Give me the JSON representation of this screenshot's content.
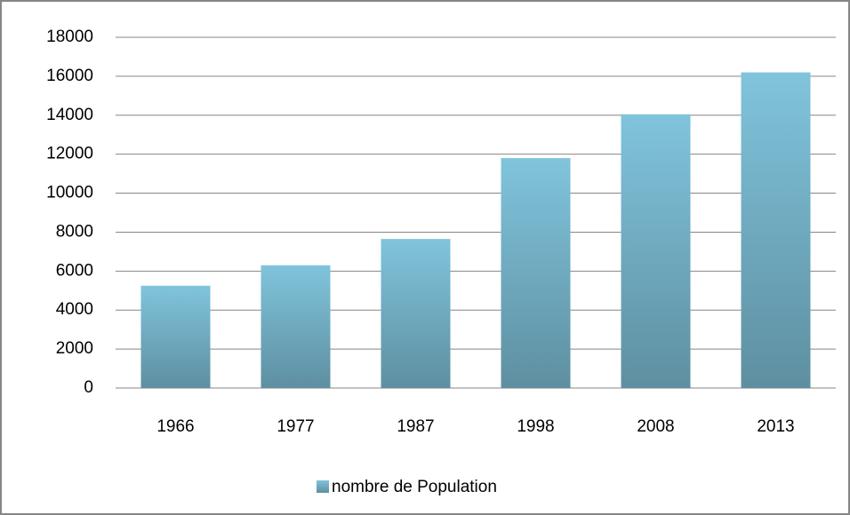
{
  "chart_data": {
    "type": "bar",
    "categories": [
      "1966",
      "1977",
      "1987",
      "1998",
      "2008",
      "2013"
    ],
    "series": [
      {
        "name": "nombre de Population",
        "color": "#80c4dc",
        "values": [
          5250,
          6300,
          7650,
          11800,
          14050,
          16200
        ]
      }
    ],
    "ylim": [
      0,
      18000
    ],
    "yticks": [
      0,
      2000,
      4000,
      6000,
      8000,
      10000,
      12000,
      14000,
      16000,
      18000
    ],
    "grid": true,
    "legend": "bottom"
  }
}
